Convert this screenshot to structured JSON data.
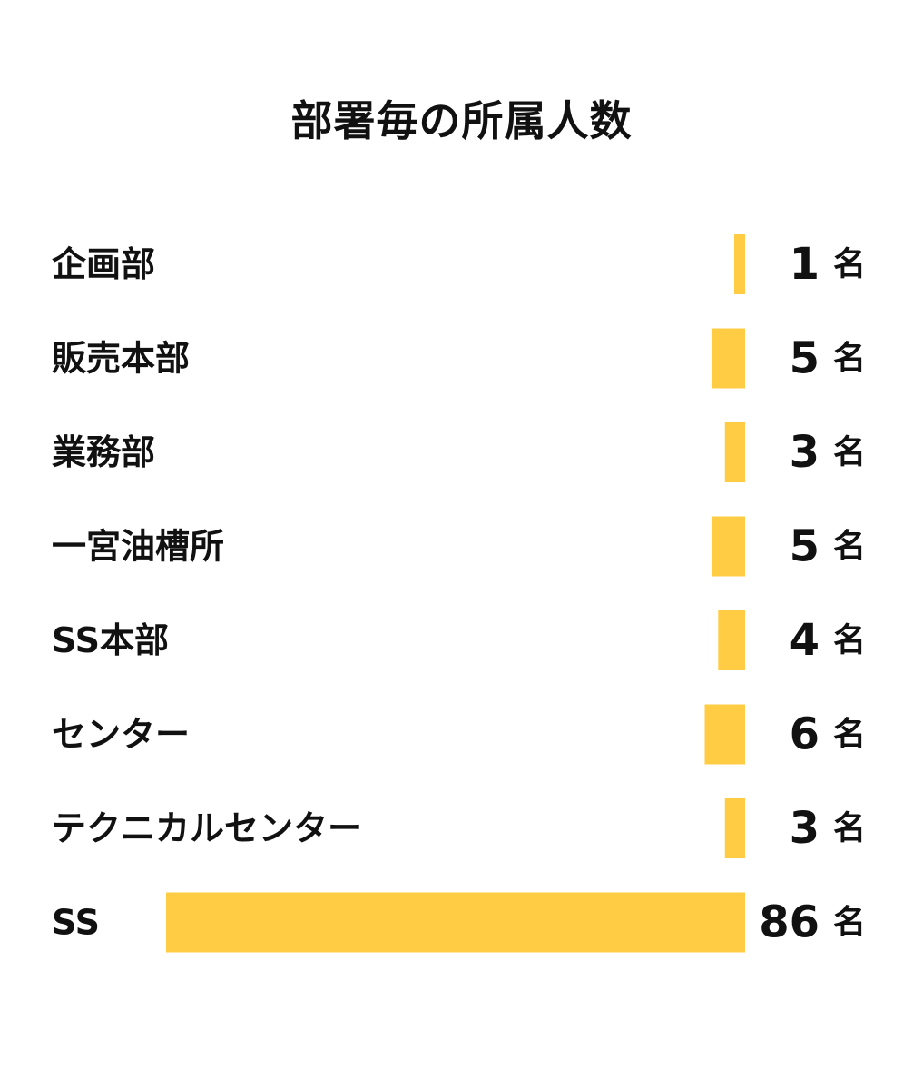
{
  "chart_data": {
    "type": "bar",
    "orientation": "horizontal",
    "title": "部署毎の所属人数",
    "categories": [
      "企画部",
      "販売本部",
      "業務部",
      "一宮油槽所",
      "SS本部",
      "センター",
      "テクニカルセンター",
      "SS"
    ],
    "values": [
      1,
      5,
      3,
      5,
      4,
      6,
      3,
      86
    ],
    "unit": "名",
    "xlim": [
      0,
      86
    ],
    "grid": false,
    "bar_color": "#FFCC44"
  }
}
